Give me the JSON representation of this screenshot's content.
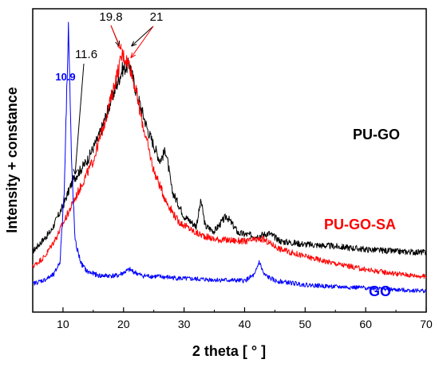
{
  "chart_data": {
    "type": "line",
    "title": "",
    "xlabel": "2 theta [ ° ]",
    "ylabel": "Intensity + constance",
    "xlim": [
      5,
      70
    ],
    "x_ticks": [
      "10",
      "20",
      "30",
      "40",
      "50",
      "60",
      "70"
    ],
    "y_ticks_labeled": false,
    "grid": false,
    "legend": "none",
    "series": [
      {
        "name": "PU-GO",
        "color": "#000000",
        "label_color": "#000000",
        "points": [
          [
            5,
            60
          ],
          [
            8,
            80
          ],
          [
            10,
            105
          ],
          [
            11.6,
            130
          ],
          [
            14,
            150
          ],
          [
            16,
            175
          ],
          [
            18,
            210
          ],
          [
            19.8,
            240
          ],
          [
            21,
            245
          ],
          [
            22,
            220
          ],
          [
            24,
            180
          ],
          [
            26,
            150
          ],
          [
            27,
            160
          ],
          [
            28,
            120
          ],
          [
            30,
            95
          ],
          [
            32,
            85
          ],
          [
            32.8,
            110
          ],
          [
            33.5,
            85
          ],
          [
            35,
            80
          ],
          [
            37,
            95
          ],
          [
            39,
            78
          ],
          [
            42,
            75
          ],
          [
            44,
            78
          ],
          [
            46,
            70
          ],
          [
            50,
            67
          ],
          [
            55,
            65
          ],
          [
            60,
            62
          ],
          [
            65,
            60
          ],
          [
            70,
            59
          ]
        ]
      },
      {
        "name": "PU-GO-SA",
        "color": "#ff0000",
        "label_color": "#ff0000",
        "points": [
          [
            5,
            45
          ],
          [
            7,
            55
          ],
          [
            9,
            75
          ],
          [
            11,
            100
          ],
          [
            13,
            125
          ],
          [
            15,
            150
          ],
          [
            17,
            190
          ],
          [
            18.5,
            225
          ],
          [
            19.8,
            255
          ],
          [
            21,
            245
          ],
          [
            22,
            220
          ],
          [
            23,
            190
          ],
          [
            24,
            165
          ],
          [
            25,
            140
          ],
          [
            27,
            110
          ],
          [
            29,
            90
          ],
          [
            32,
            78
          ],
          [
            35,
            72
          ],
          [
            40,
            70
          ],
          [
            43,
            72
          ],
          [
            46,
            62
          ],
          [
            50,
            55
          ],
          [
            55,
            48
          ],
          [
            60,
            42
          ],
          [
            65,
            38
          ],
          [
            70,
            35
          ]
        ]
      },
      {
        "name": "GO",
        "color": "#0000ff",
        "label_color": "#0000ff",
        "points": [
          [
            5,
            28
          ],
          [
            7,
            32
          ],
          [
            8.5,
            37
          ],
          [
            9.5,
            50
          ],
          [
            10.2,
            120
          ],
          [
            10.9,
            285
          ],
          [
            11.4,
            150
          ],
          [
            12,
            70
          ],
          [
            13,
            48
          ],
          [
            14,
            40
          ],
          [
            16,
            36
          ],
          [
            19,
            36
          ],
          [
            21,
            42
          ],
          [
            23,
            36
          ],
          [
            26,
            35
          ],
          [
            30,
            33
          ],
          [
            35,
            32
          ],
          [
            40,
            31
          ],
          [
            41.7,
            37
          ],
          [
            42.4,
            50
          ],
          [
            43.2,
            37
          ],
          [
            45,
            31
          ],
          [
            50,
            27
          ],
          [
            55,
            25
          ],
          [
            60,
            24
          ],
          [
            65,
            22
          ],
          [
            70,
            21
          ]
        ]
      }
    ],
    "annotations": [
      {
        "text": "19.8",
        "color": "#000000",
        "target": [
          19.8,
          255
        ],
        "target_series": "PU-GO-SA"
      },
      {
        "text": "21",
        "color": "#000000",
        "target": [
          21,
          245
        ],
        "target_series": "PU-GO-SA"
      },
      {
        "text": "11.6",
        "color": "#000000",
        "target": [
          11.6,
          130
        ],
        "target_series": "PU-GO"
      },
      {
        "text": "10.9",
        "color": "#0000ff",
        "target": [
          10.9,
          285
        ],
        "target_series": "GO"
      }
    ]
  }
}
